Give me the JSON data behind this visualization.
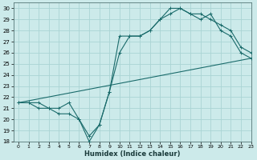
{
  "xlabel": "Humidex (Indice chaleur)",
  "ylabel": "",
  "bg_color": "#cceaea",
  "line_color": "#1a6b6b",
  "grid_color": "#aad4d4",
  "xlim": [
    -0.5,
    23
  ],
  "ylim": [
    18,
    30.5
  ],
  "xticks": [
    0,
    1,
    2,
    3,
    4,
    5,
    6,
    7,
    8,
    9,
    10,
    11,
    12,
    13,
    14,
    15,
    16,
    17,
    18,
    19,
    20,
    21,
    22,
    23
  ],
  "yticks": [
    18,
    19,
    20,
    21,
    22,
    23,
    24,
    25,
    26,
    27,
    28,
    29,
    30
  ],
  "line1_x": [
    0,
    1,
    2,
    3,
    4,
    5,
    6,
    7,
    8,
    9,
    10,
    11,
    12,
    13,
    14,
    15,
    16,
    17,
    18,
    19,
    20,
    21,
    22,
    23
  ],
  "line1_y": [
    21.5,
    21.5,
    21.0,
    21.0,
    20.5,
    20.5,
    20.0,
    18.0,
    19.5,
    22.5,
    26.0,
    27.5,
    27.5,
    28.0,
    29.0,
    30.0,
    30.0,
    29.5,
    29.0,
    29.5,
    28.0,
    27.5,
    26.0,
    25.5
  ],
  "line2_x": [
    0,
    1,
    2,
    3,
    4,
    5,
    6,
    7,
    8,
    9,
    10,
    11,
    12,
    13,
    14,
    15,
    16,
    17,
    18,
    19,
    20,
    21,
    22,
    23
  ],
  "line2_y": [
    21.5,
    21.5,
    21.5,
    21.0,
    21.0,
    21.5,
    20.0,
    18.5,
    19.5,
    22.5,
    27.5,
    27.5,
    27.5,
    28.0,
    29.0,
    29.5,
    30.0,
    29.5,
    29.5,
    29.0,
    28.5,
    28.0,
    26.5,
    26.0
  ],
  "line3_x": [
    0,
    23
  ],
  "line3_y": [
    21.5,
    25.5
  ]
}
